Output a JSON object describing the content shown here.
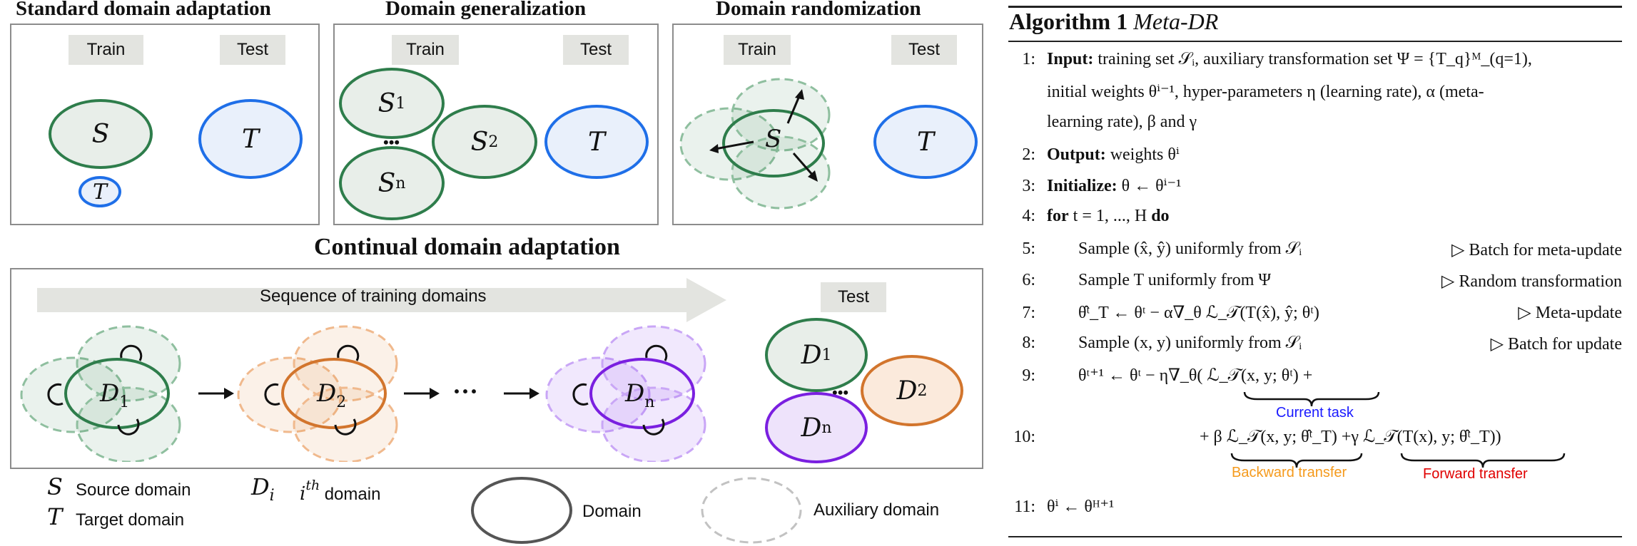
{
  "panels": {
    "standard": {
      "title": "Standard domain adaptation",
      "train": "Train",
      "test": "Test",
      "source": "S",
      "target": "T"
    },
    "generalization": {
      "title": "Domain generalization",
      "train": "Train",
      "test": "Test",
      "s1": "S",
      "s1_sub": "1",
      "s2": "S",
      "s2_sub": "2",
      "sn": "S",
      "sn_sub": "n",
      "target": "T",
      "dots": "•••"
    },
    "randomization": {
      "title": "Domain randomization",
      "train": "Train",
      "test": "Test",
      "source": "S",
      "target": "T"
    }
  },
  "continual": {
    "title": "Continual domain adaptation",
    "sequence_label": "Sequence of training domains",
    "test": "Test",
    "d1": "D",
    "d1_sub": "1",
    "d2": "D",
    "d2_sub": "2",
    "dn": "D",
    "dn_sub": "n",
    "ellipsis": "···",
    "test_d1_sub": "1",
    "test_d2_sub": "2",
    "test_dn_sub": "n"
  },
  "legend": {
    "source_symbol": "S",
    "source_label": "Source domain",
    "target_symbol": "T",
    "target_label": "Target domain",
    "di_symbol": "D",
    "di_sub": "i",
    "di_sup_label": "i",
    "di_sup": "th",
    "di_label": "domain",
    "domain_label": "Domain",
    "aux_label": "Auxiliary domain"
  },
  "colors": {
    "source": "#2e7d4b",
    "target": "#1f6fe8",
    "d2": "#d2752d",
    "dn": "#7a1fe0",
    "current": "#1a1aff",
    "backward": "#f59a1c",
    "forward": "#e00000"
  },
  "algorithm": {
    "title_bold": "Algorithm 1",
    "title_italic": "Meta-DR",
    "lines": [
      {
        "n": "1:",
        "kw": "Input:",
        "text": "training set 𝒮ᵢ, auxiliary transformation set Ψ = {T_q}ᴹ_(q=1),"
      },
      {
        "n": "",
        "kw": "",
        "text": "initial weights θⁱ⁻¹, hyper-parameters η (learning rate), α (meta-"
      },
      {
        "n": "",
        "kw": "",
        "text": "learning rate), β and γ"
      },
      {
        "n": "2:",
        "kw": "Output:",
        "text": "weights θⁱ"
      },
      {
        "n": "3:",
        "kw": "Initialize:",
        "text": "θ ← θⁱ⁻¹"
      },
      {
        "n": "4:",
        "kw": "for",
        "text": "t = 1, ..., H",
        "kw2": "do"
      },
      {
        "n": "5:",
        "kw": "",
        "text": "Sample (x̂, ŷ) uniformly from 𝒮ᵢ",
        "comment": "▷ Batch for meta-update"
      },
      {
        "n": "6:",
        "kw": "",
        "text": "Sample T uniformly from Ψ",
        "comment": "▷ Random transformation"
      },
      {
        "n": "7:",
        "kw": "",
        "text": "θ̂ᵗ_T ← θᵗ − α∇_θ ℒ_𝒯(T(x̂), ŷ; θᵗ)",
        "comment": "▷ Meta-update"
      },
      {
        "n": "8:",
        "kw": "",
        "text": "Sample (x, y) uniformly from 𝒮ᵢ",
        "comment": "▷ Batch for update"
      },
      {
        "n": "9:",
        "kw": "",
        "text": "θᵗ⁺¹ ← θᵗ − η∇_θ( ℒ_𝒯(x, y; θᵗ) +"
      },
      {
        "n": "10:",
        "kw": "",
        "text": "+ β ℒ_𝒯(x, y; θ̂ᵗ_T) +γ ℒ_𝒯(T(x), y; θ̂ᵗ_T))"
      },
      {
        "n": "11:",
        "kw": "",
        "text": "θⁱ ← θᴴ⁺¹"
      }
    ],
    "brace_labels": {
      "current": "Current task",
      "backward": "Backward transfer",
      "forward": "Forward transfer"
    }
  }
}
